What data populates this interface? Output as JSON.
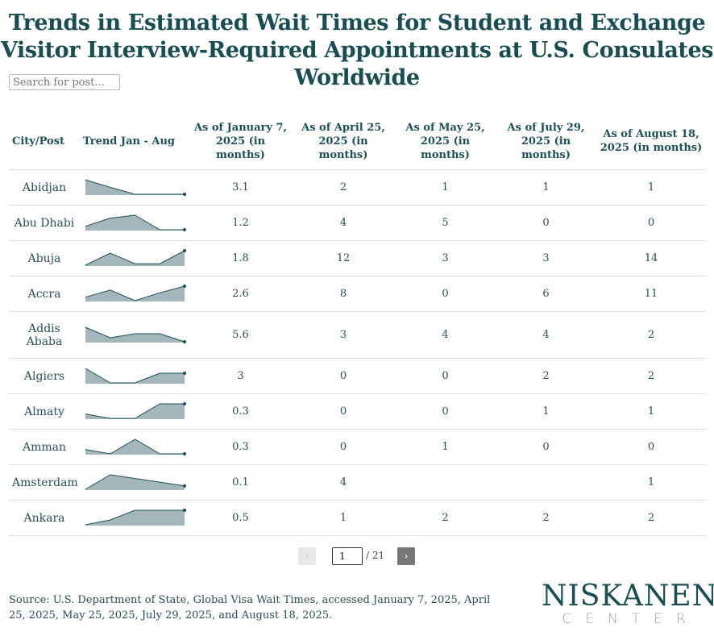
{
  "title": "Trends in Estimated Wait Times for Student and Exchange Visitor Interview-Required Appointments at U.S. Consulates Worldwide",
  "search": {
    "placeholder": "Search for post..."
  },
  "colors": {
    "title": "#1a4d52",
    "spark_fill": "#a4b6bb",
    "spark_line": "#1f4f54"
  },
  "chart_data": {
    "type": "table",
    "columns": [
      "City/Post",
      "Trend Jan - Aug",
      "As of January 7, 2025 (in months)",
      "As of April 25, 2025 (in months)",
      "As of May 25, 2025 (in months)",
      "As of July 29, 2025 (in months)",
      "As of August 18, 2025 (in months)"
    ],
    "rows": [
      {
        "city": "Abidjan",
        "values": [
          "3.1",
          "2",
          "1",
          "1",
          "1"
        ]
      },
      {
        "city": "Abu Dhabi",
        "values": [
          "1.2",
          "4",
          "5",
          "0",
          "0"
        ]
      },
      {
        "city": "Abuja",
        "values": [
          "1.8",
          "12",
          "3",
          "3",
          "14"
        ]
      },
      {
        "city": "Accra",
        "values": [
          "2.6",
          "8",
          "0",
          "6",
          "11"
        ]
      },
      {
        "city": "Addis Ababa",
        "values": [
          "5.6",
          "3",
          "4",
          "4",
          "2"
        ]
      },
      {
        "city": "Algiers",
        "values": [
          "3",
          "0",
          "0",
          "2",
          "2"
        ]
      },
      {
        "city": "Almaty",
        "values": [
          "0.3",
          "0",
          "0",
          "1",
          "1"
        ]
      },
      {
        "city": "Amman",
        "values": [
          "0.3",
          "0",
          "1",
          "0",
          "0"
        ]
      },
      {
        "city": "Amsterdam",
        "values": [
          "0.1",
          "4",
          "",
          "",
          "1"
        ]
      },
      {
        "city": "Ankara",
        "values": [
          "0.5",
          "1",
          "2",
          "2",
          "2"
        ]
      }
    ]
  },
  "pagination": {
    "current": "1",
    "total": "/ 21",
    "prev_icon": "‹",
    "next_icon": "›"
  },
  "source": "Source: U.S. Department of State, Global Visa Wait Times, accessed January 7, 2025, April 25, 2025, May 25, 2025, July 29, 2025, and August 18, 2025.",
  "logo": {
    "top": "NISKANEN",
    "bottom": "CENTER"
  }
}
